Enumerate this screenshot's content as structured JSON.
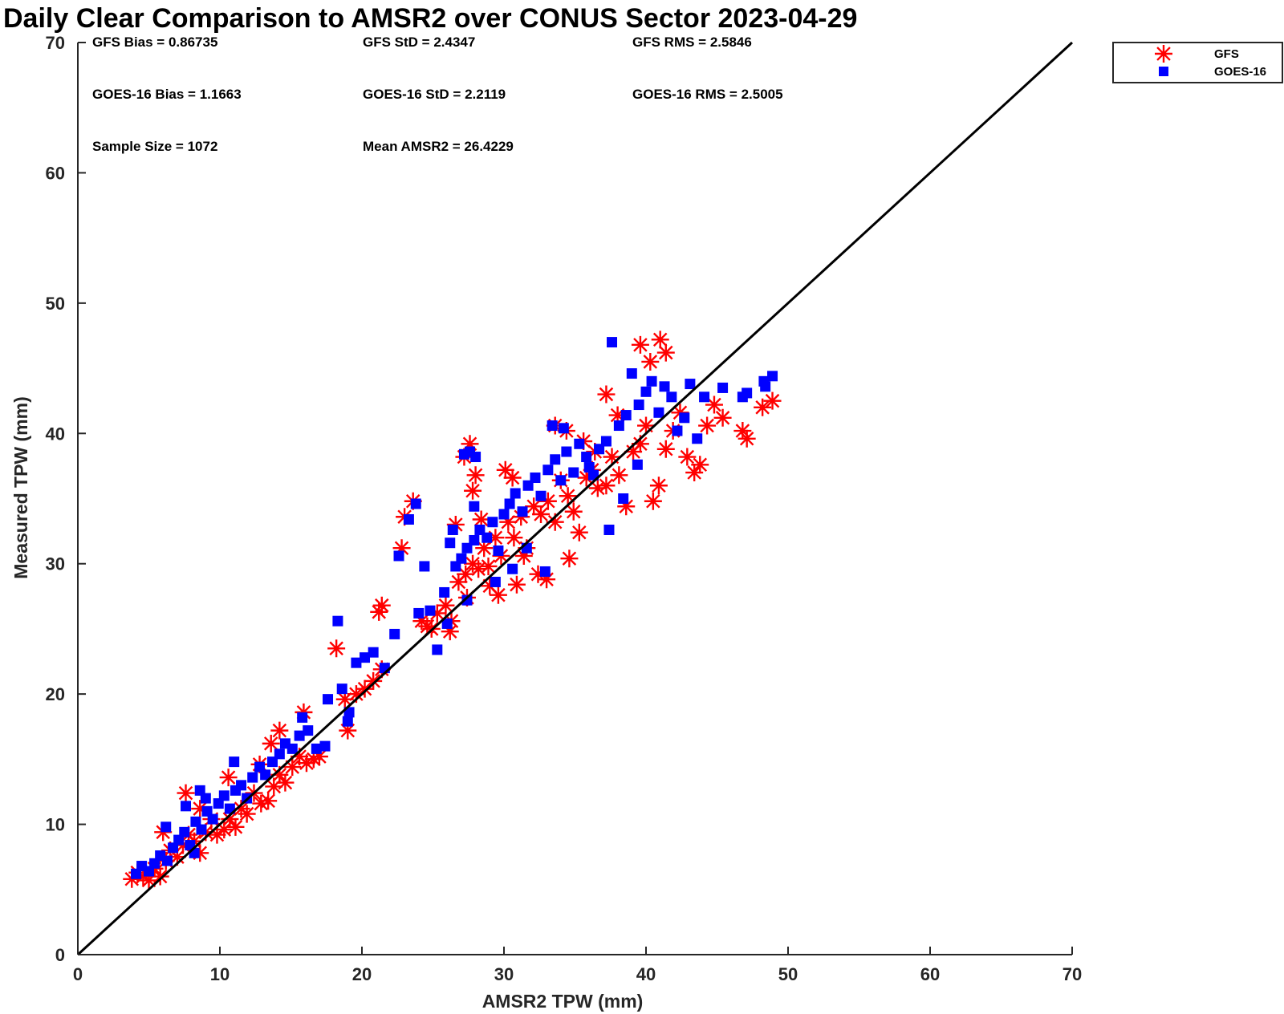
{
  "chart_data": {
    "type": "scatter",
    "title": "Daily Clear Comparison to AMSR2 over CONUS Sector 2023-04-29",
    "xlabel": "AMSR2 TPW (mm)",
    "ylabel": "Measured TPW (mm)",
    "xlim": [
      0,
      70
    ],
    "ylim": [
      0,
      70
    ],
    "xticks": [
      "0",
      "10",
      "20",
      "30",
      "40",
      "50",
      "60",
      "70"
    ],
    "yticks": [
      "0",
      "10",
      "20",
      "30",
      "40",
      "50",
      "60",
      "70"
    ],
    "grid": false,
    "legend_position": "outside-top-right",
    "reference_line": {
      "x": [
        0,
        70
      ],
      "y": [
        0,
        70
      ],
      "color": "#000000"
    },
    "stats": [
      {
        "id": "gfs-bias",
        "text": "GFS Bias = 0.86735"
      },
      {
        "id": "gfs-std",
        "text": "GFS StD = 2.4347"
      },
      {
        "id": "gfs-rms",
        "text": "GFS RMS = 2.5846"
      },
      {
        "id": "goes-bias",
        "text": "GOES-16 Bias = 1.1663"
      },
      {
        "id": "goes-std",
        "text": "GOES-16 StD = 2.2119"
      },
      {
        "id": "goes-rms",
        "text": "GOES-16 RMS = 2.5005"
      },
      {
        "id": "sample-size",
        "text": "Sample Size = 1072"
      },
      {
        "id": "mean-amsr2",
        "text": "Mean AMSR2 = 26.4229"
      }
    ],
    "series": [
      {
        "name": "GFS",
        "marker": "asterisk",
        "color": "#ff0000",
        "points": [
          [
            3.8,
            5.8
          ],
          [
            4.2,
            6.3
          ],
          [
            4.6,
            6.0
          ],
          [
            5.0,
            5.7
          ],
          [
            5.4,
            6.6
          ],
          [
            5.8,
            6.0
          ],
          [
            6.2,
            7.2
          ],
          [
            6.5,
            8.0
          ],
          [
            7.0,
            7.5
          ],
          [
            7.4,
            8.4
          ],
          [
            7.8,
            9.2
          ],
          [
            8.2,
            8.7
          ],
          [
            8.6,
            7.8
          ],
          [
            9.0,
            9.4
          ],
          [
            9.4,
            10.4
          ],
          [
            9.8,
            9.2
          ],
          [
            10.3,
            9.6
          ],
          [
            10.7,
            10.4
          ],
          [
            11.1,
            9.8
          ],
          [
            11.5,
            11.2
          ],
          [
            11.9,
            10.8
          ],
          [
            12.4,
            12.4
          ],
          [
            12.9,
            11.6
          ],
          [
            13.4,
            11.8
          ],
          [
            13.8,
            12.9
          ],
          [
            14.2,
            13.8
          ],
          [
            14.6,
            13.2
          ],
          [
            15.1,
            14.4
          ],
          [
            15.6,
            15.2
          ],
          [
            16.1,
            14.7
          ],
          [
            16.6,
            15.0
          ],
          [
            17.0,
            15.2
          ],
          [
            15.9,
            18.6
          ],
          [
            14.2,
            17.2
          ],
          [
            6.0,
            9.4
          ],
          [
            7.6,
            12.4
          ],
          [
            8.6,
            11.2
          ],
          [
            10.6,
            13.6
          ],
          [
            12.8,
            14.6
          ],
          [
            13.6,
            16.2
          ],
          [
            18.2,
            23.5
          ],
          [
            19.0,
            17.2
          ],
          [
            18.8,
            19.6
          ],
          [
            19.6,
            20.0
          ],
          [
            20.2,
            20.4
          ],
          [
            20.8,
            21.0
          ],
          [
            21.4,
            21.9
          ],
          [
            21.4,
            26.8
          ],
          [
            21.2,
            26.3
          ],
          [
            22.8,
            31.2
          ],
          [
            23.0,
            33.6
          ],
          [
            23.6,
            34.8
          ],
          [
            24.2,
            25.6
          ],
          [
            24.6,
            25.2
          ],
          [
            25.3,
            26.2
          ],
          [
            25.9,
            26.8
          ],
          [
            26.3,
            25.6
          ],
          [
            26.8,
            28.6
          ],
          [
            27.3,
            29.2
          ],
          [
            27.8,
            30.0
          ],
          [
            28.2,
            29.6
          ],
          [
            28.6,
            31.2
          ],
          [
            29.0,
            28.3
          ],
          [
            29.4,
            32.0
          ],
          [
            29.8,
            30.6
          ],
          [
            30.3,
            33.2
          ],
          [
            30.7,
            32.0
          ],
          [
            31.2,
            33.6
          ],
          [
            31.6,
            31.2
          ],
          [
            32.1,
            34.4
          ],
          [
            32.6,
            33.8
          ],
          [
            33.1,
            34.8
          ],
          [
            33.6,
            33.2
          ],
          [
            34.0,
            36.4
          ],
          [
            34.5,
            35.2
          ],
          [
            34.9,
            34.0
          ],
          [
            35.3,
            32.4
          ],
          [
            35.8,
            36.6
          ],
          [
            36.2,
            37.2
          ],
          [
            36.6,
            35.8
          ],
          [
            37.2,
            36.0
          ],
          [
            37.6,
            38.2
          ],
          [
            38.1,
            36.8
          ],
          [
            38.6,
            34.4
          ],
          [
            39.1,
            38.6
          ],
          [
            39.6,
            39.2
          ],
          [
            40.0,
            40.6
          ],
          [
            40.5,
            34.8
          ],
          [
            40.9,
            36.0
          ],
          [
            41.4,
            38.8
          ],
          [
            41.9,
            40.2
          ],
          [
            42.4,
            41.6
          ],
          [
            42.9,
            38.2
          ],
          [
            43.4,
            37.0
          ],
          [
            43.8,
            37.6
          ],
          [
            44.3,
            40.6
          ],
          [
            44.8,
            42.2
          ],
          [
            45.4,
            41.2
          ],
          [
            46.8,
            40.2
          ],
          [
            47.1,
            39.6
          ],
          [
            48.2,
            42.0
          ],
          [
            48.9,
            42.5
          ],
          [
            39.6,
            46.8
          ],
          [
            40.3,
            45.5
          ],
          [
            41.0,
            47.2
          ],
          [
            41.4,
            46.2
          ],
          [
            37.2,
            43.0
          ],
          [
            38.0,
            41.4
          ],
          [
            27.6,
            39.2
          ],
          [
            27.2,
            38.2
          ],
          [
            28.0,
            36.8
          ],
          [
            27.8,
            35.6
          ],
          [
            26.6,
            33.0
          ],
          [
            28.4,
            33.4
          ],
          [
            30.1,
            37.2
          ],
          [
            30.6,
            36.6
          ],
          [
            33.6,
            40.6
          ],
          [
            34.4,
            40.2
          ],
          [
            35.6,
            39.4
          ],
          [
            36.4,
            38.6
          ],
          [
            32.4,
            29.2
          ],
          [
            33.0,
            28.8
          ],
          [
            34.6,
            30.4
          ],
          [
            29.6,
            27.6
          ],
          [
            30.9,
            28.4
          ],
          [
            26.2,
            24.8
          ],
          [
            24.9,
            25.0
          ],
          [
            27.4,
            27.4
          ],
          [
            28.9,
            29.8
          ],
          [
            31.4,
            30.6
          ]
        ]
      },
      {
        "name": "GOES-16",
        "marker": "square",
        "color": "#0000ff",
        "points": [
          [
            4.1,
            6.2
          ],
          [
            4.5,
            6.8
          ],
          [
            5.0,
            6.4
          ],
          [
            5.4,
            7.0
          ],
          [
            5.8,
            7.6
          ],
          [
            6.3,
            7.2
          ],
          [
            6.7,
            8.2
          ],
          [
            7.1,
            8.8
          ],
          [
            7.5,
            9.4
          ],
          [
            7.9,
            8.4
          ],
          [
            8.3,
            10.2
          ],
          [
            8.7,
            9.6
          ],
          [
            9.1,
            11.0
          ],
          [
            9.5,
            10.4
          ],
          [
            9.9,
            11.6
          ],
          [
            10.3,
            12.2
          ],
          [
            10.7,
            11.2
          ],
          [
            11.1,
            12.6
          ],
          [
            11.5,
            13.0
          ],
          [
            11.9,
            12.0
          ],
          [
            12.3,
            13.6
          ],
          [
            12.8,
            14.4
          ],
          [
            13.2,
            13.8
          ],
          [
            13.7,
            14.8
          ],
          [
            14.2,
            15.4
          ],
          [
            14.6,
            16.2
          ],
          [
            15.1,
            15.8
          ],
          [
            15.6,
            16.8
          ],
          [
            16.2,
            17.2
          ],
          [
            16.8,
            15.8
          ],
          [
            17.4,
            16.0
          ],
          [
            11.0,
            14.8
          ],
          [
            8.6,
            12.6
          ],
          [
            6.2,
            9.8
          ],
          [
            7.6,
            11.4
          ],
          [
            9.0,
            12.0
          ],
          [
            8.2,
            7.8
          ],
          [
            15.8,
            18.2
          ],
          [
            18.3,
            25.6
          ],
          [
            17.6,
            19.6
          ],
          [
            18.6,
            20.4
          ],
          [
            19.1,
            18.6
          ],
          [
            19.0,
            17.9
          ],
          [
            19.6,
            22.4
          ],
          [
            20.2,
            22.8
          ],
          [
            20.8,
            23.2
          ],
          [
            21.6,
            22.0
          ],
          [
            22.3,
            24.6
          ],
          [
            22.6,
            30.6
          ],
          [
            23.3,
            33.4
          ],
          [
            23.8,
            34.6
          ],
          [
            24.4,
            29.8
          ],
          [
            24.8,
            26.4
          ],
          [
            25.3,
            23.4
          ],
          [
            25.8,
            27.8
          ],
          [
            26.2,
            31.6
          ],
          [
            26.6,
            29.8
          ],
          [
            27.0,
            30.4
          ],
          [
            27.4,
            31.2
          ],
          [
            27.9,
            31.8
          ],
          [
            28.3,
            32.6
          ],
          [
            28.8,
            32.0
          ],
          [
            29.2,
            33.2
          ],
          [
            29.6,
            31.0
          ],
          [
            30.0,
            33.8
          ],
          [
            30.4,
            34.6
          ],
          [
            30.8,
            35.4
          ],
          [
            31.3,
            34.0
          ],
          [
            31.7,
            36.0
          ],
          [
            32.2,
            36.6
          ],
          [
            32.6,
            35.2
          ],
          [
            33.1,
            37.2
          ],
          [
            33.6,
            38.0
          ],
          [
            34.0,
            36.4
          ],
          [
            34.4,
            38.6
          ],
          [
            34.9,
            37.0
          ],
          [
            35.3,
            39.2
          ],
          [
            35.8,
            38.2
          ],
          [
            36.3,
            36.8
          ],
          [
            36.7,
            38.8
          ],
          [
            37.2,
            39.4
          ],
          [
            37.6,
            47.0
          ],
          [
            38.1,
            40.6
          ],
          [
            38.6,
            41.4
          ],
          [
            39.0,
            44.6
          ],
          [
            39.5,
            42.2
          ],
          [
            40.0,
            43.2
          ],
          [
            40.4,
            44.0
          ],
          [
            40.9,
            41.6
          ],
          [
            41.3,
            43.6
          ],
          [
            41.8,
            42.8
          ],
          [
            42.2,
            40.2
          ],
          [
            42.7,
            41.2
          ],
          [
            43.1,
            43.8
          ],
          [
            43.6,
            39.6
          ],
          [
            44.1,
            42.8
          ],
          [
            45.4,
            43.5
          ],
          [
            46.8,
            42.8
          ],
          [
            47.1,
            43.1
          ],
          [
            48.3,
            44.0
          ],
          [
            48.4,
            43.6
          ],
          [
            48.9,
            44.4
          ],
          [
            27.2,
            38.4
          ],
          [
            27.6,
            38.6
          ],
          [
            28.0,
            38.2
          ],
          [
            26.4,
            32.6
          ],
          [
            27.9,
            34.4
          ],
          [
            33.4,
            40.6
          ],
          [
            34.2,
            40.4
          ],
          [
            36.0,
            37.4
          ],
          [
            37.4,
            32.6
          ],
          [
            38.4,
            35.0
          ],
          [
            39.4,
            37.6
          ],
          [
            32.9,
            29.4
          ],
          [
            29.4,
            28.6
          ],
          [
            30.6,
            29.6
          ],
          [
            26.0,
            25.4
          ],
          [
            24.0,
            26.2
          ],
          [
            27.4,
            27.2
          ],
          [
            31.6,
            31.2
          ]
        ]
      }
    ]
  }
}
